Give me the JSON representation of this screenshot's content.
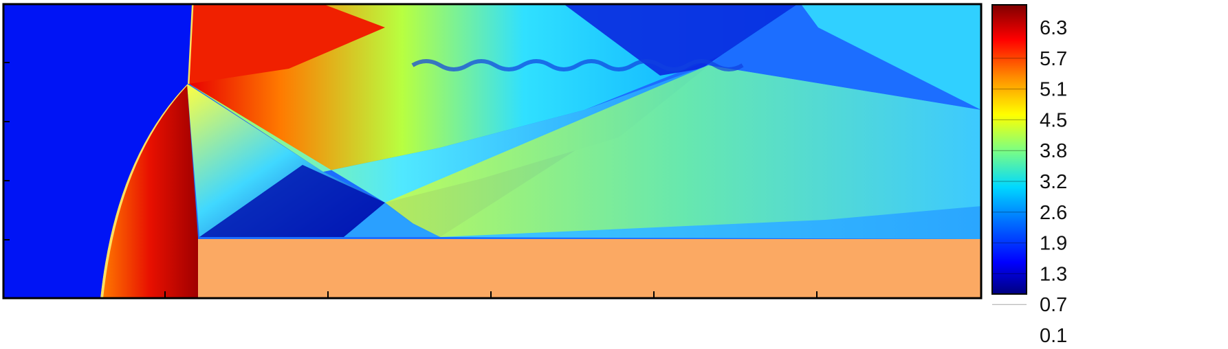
{
  "chart_data": {
    "type": "heatmap",
    "title": "",
    "xlabel": "",
    "ylabel": "",
    "colormap": [
      "#00007f",
      "#0000ff",
      "#0070ff",
      "#00d8ff",
      "#7fff7f",
      "#ffff00",
      "#ff8c00",
      "#ff0000",
      "#7f0000"
    ],
    "colorbar": {
      "range": [
        0.1,
        6.6
      ],
      "tick_labels": [
        "6.3",
        "5.7",
        "5.1",
        "4.5",
        "3.8",
        "3.2",
        "2.6",
        "1.9",
        "1.3",
        "0.7",
        "0.1"
      ]
    },
    "obstacle_color": "#fba963",
    "frame_color": "#000000",
    "grid": false
  }
}
